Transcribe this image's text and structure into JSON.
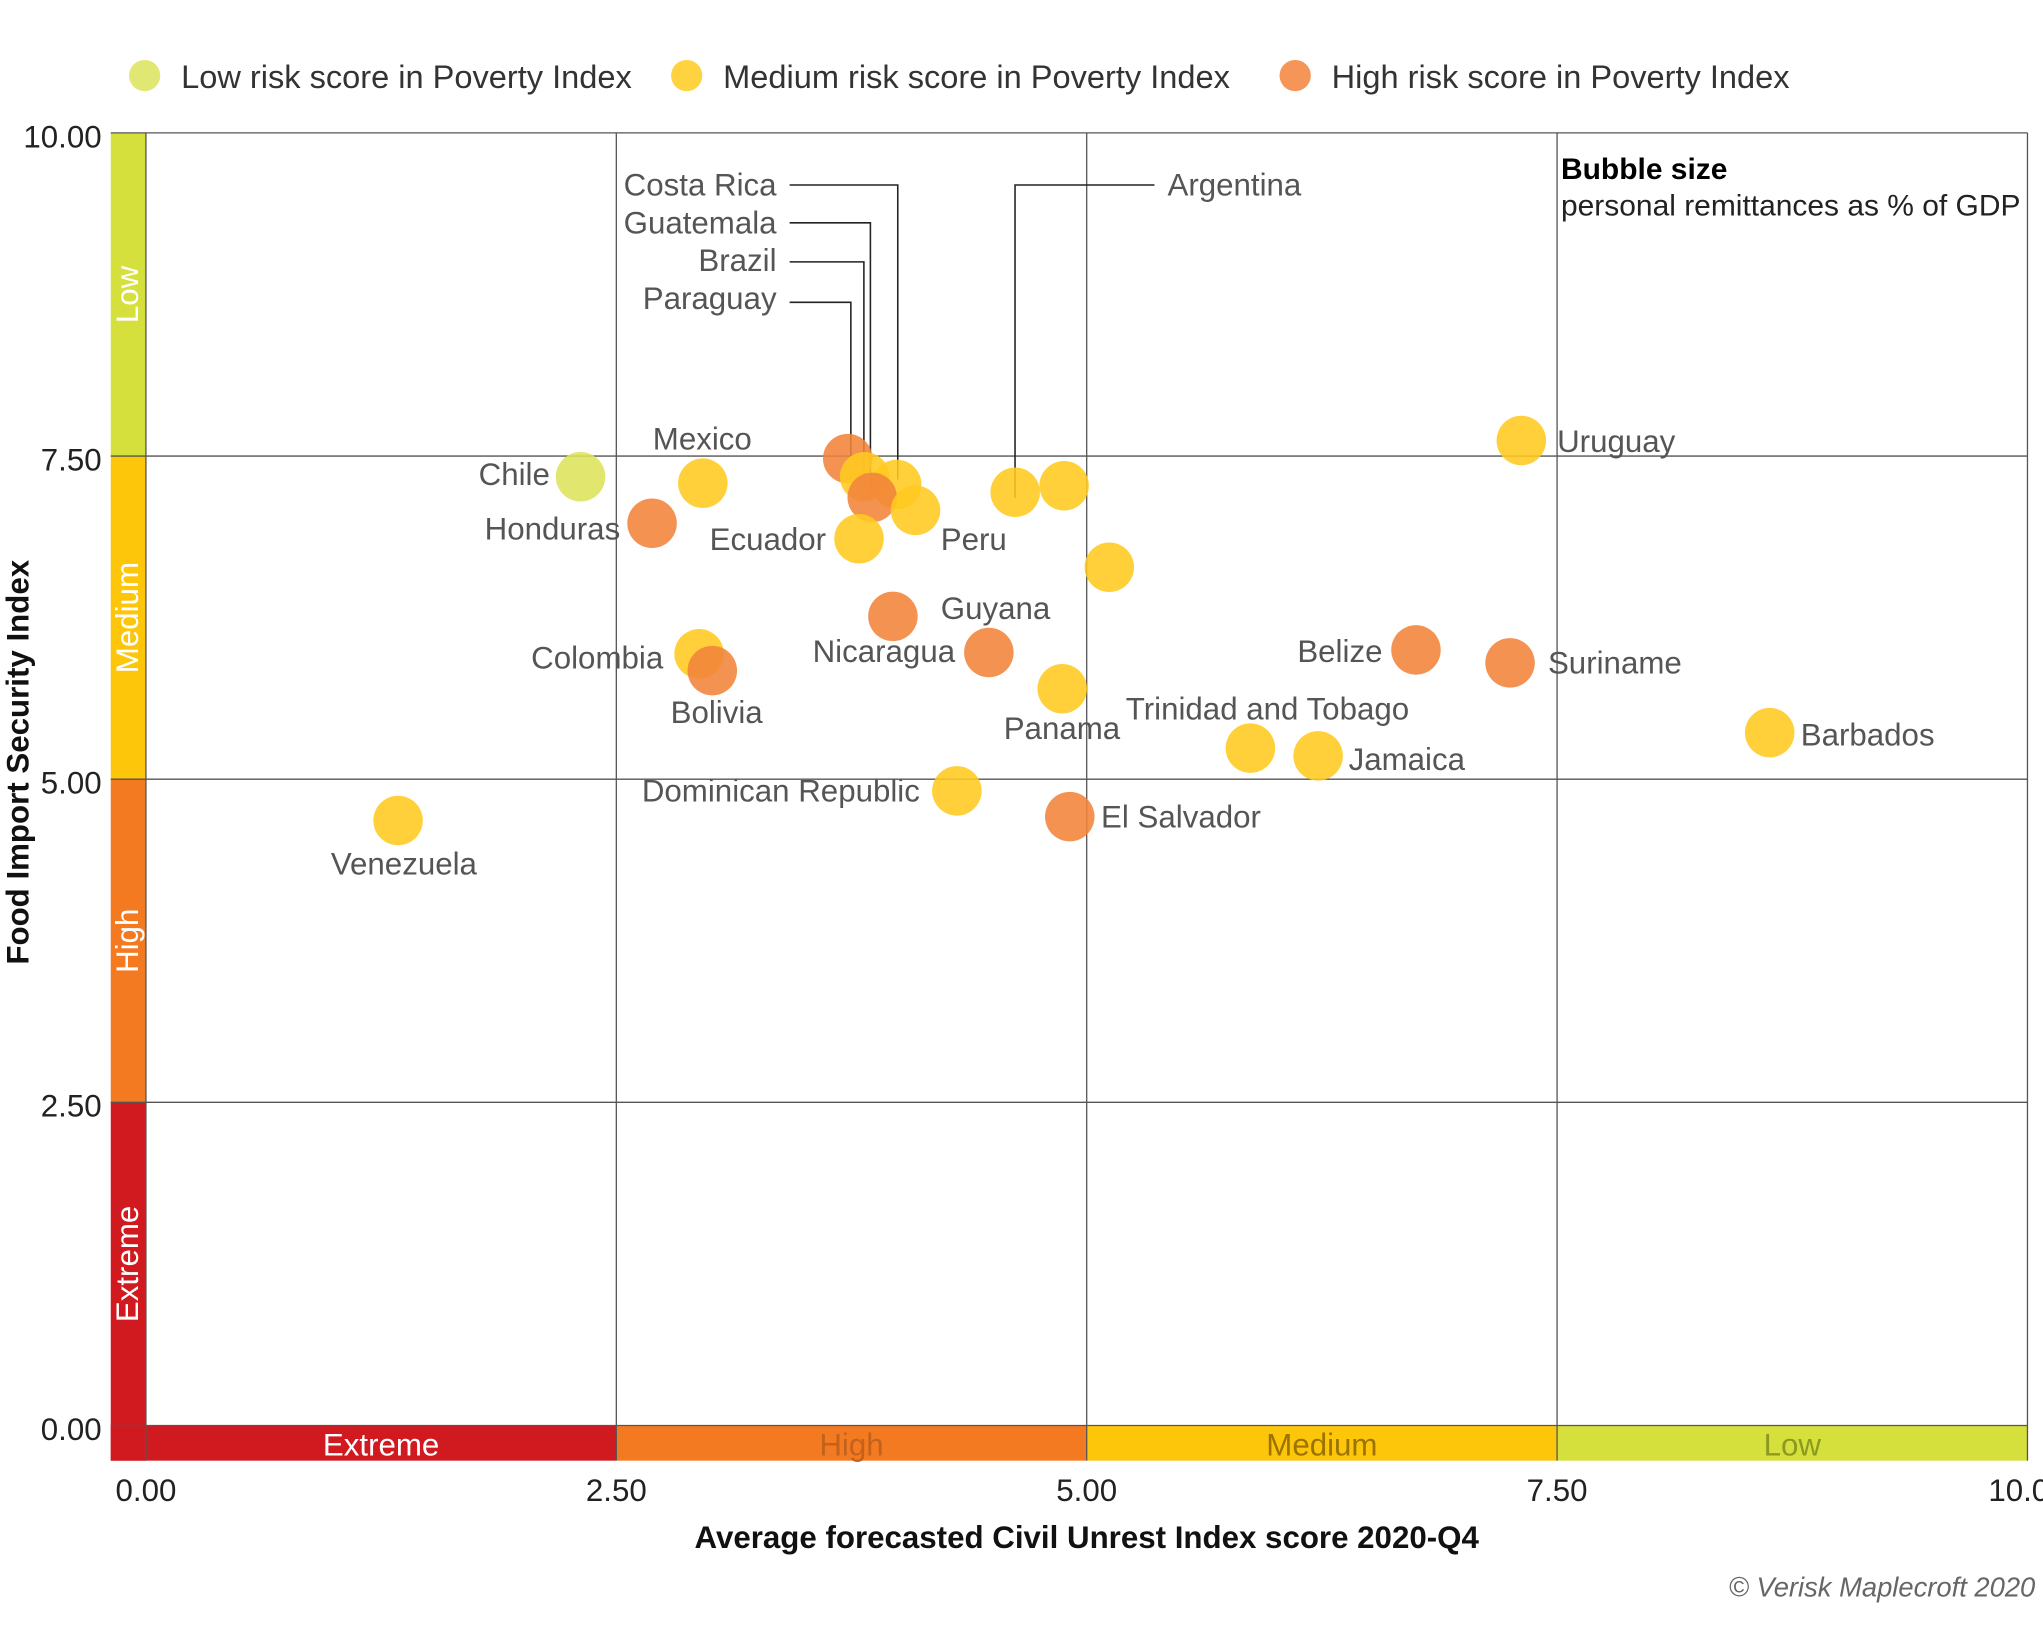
{
  "chart_data": {
    "type": "scatter",
    "xlabel": "Average forecasted Civil Unrest Index score 2020-Q4",
    "ylabel": "Food Import Security Index",
    "xlim": [
      0,
      10
    ],
    "ylim": [
      0,
      10
    ],
    "xticks": [
      "0.00",
      "2.50",
      "5.00",
      "7.50",
      "10.00"
    ],
    "yticks": [
      "0.00",
      "2.50",
      "5.00",
      "7.50",
      "10.00"
    ],
    "grid": true,
    "legend_position": "top",
    "legend": [
      {
        "key": "low",
        "label": "Low risk score in Poverty Index",
        "color": "#dce35a"
      },
      {
        "key": "medium",
        "label": "Medium risk score in Poverty Index",
        "color": "#ffca1f"
      },
      {
        "key": "high",
        "label": "High risk score in Poverty Index",
        "color": "#f3833a"
      }
    ],
    "bubble_note": {
      "title": "Bubble size",
      "text": "personal remittances as % of GDP"
    },
    "risk_bands": {
      "labels": [
        "Extreme",
        "High",
        "Medium",
        "Low"
      ],
      "ranges": [
        [
          0,
          2.5
        ],
        [
          2.5,
          5
        ],
        [
          5,
          7.5
        ],
        [
          7.5,
          10
        ]
      ],
      "colors": [
        "#d11a20",
        "#f47a22",
        "#fdc60b",
        "#d6e03d"
      ]
    },
    "points": [
      {
        "name": "Chile",
        "x": 2.31,
        "y": 7.34,
        "risk": "low"
      },
      {
        "name": "Mexico",
        "x": 2.96,
        "y": 7.29,
        "risk": "medium"
      },
      {
        "name": "Honduras",
        "x": 2.69,
        "y": 6.98,
        "risk": "high"
      },
      {
        "name": "Paraguay",
        "x": 3.73,
        "y": 7.48,
        "risk": "high"
      },
      {
        "name": "Brazil",
        "x": 3.82,
        "y": 7.34,
        "risk": "medium"
      },
      {
        "name": "Costa Rica",
        "x": 3.99,
        "y": 7.28,
        "risk": "medium"
      },
      {
        "name": "Guatemala",
        "x": 3.86,
        "y": 7.18,
        "risk": "high"
      },
      {
        "name": "Peru",
        "x": 4.09,
        "y": 7.08,
        "risk": "medium"
      },
      {
        "name": "Ecuador",
        "x": 3.79,
        "y": 6.86,
        "risk": "medium"
      },
      {
        "name": "Argentina",
        "x": 4.62,
        "y": 7.22,
        "risk": "medium"
      },
      {
        "name": "",
        "x": 4.88,
        "y": 7.27,
        "risk": "medium"
      },
      {
        "name": "",
        "x": 5.12,
        "y": 6.64,
        "risk": "medium"
      },
      {
        "name": "Guyana",
        "x": 3.97,
        "y": 6.26,
        "risk": "high"
      },
      {
        "name": "Nicaragua",
        "x": 4.48,
        "y": 5.98,
        "risk": "high"
      },
      {
        "name": "Colombia",
        "x": 2.94,
        "y": 5.97,
        "risk": "medium"
      },
      {
        "name": "Bolivia",
        "x": 3.01,
        "y": 5.84,
        "risk": "high"
      },
      {
        "name": "Panama",
        "x": 4.87,
        "y": 5.7,
        "risk": "medium"
      },
      {
        "name": "Dominican Republic",
        "x": 4.31,
        "y": 4.91,
        "risk": "medium"
      },
      {
        "name": "El Salvador",
        "x": 4.91,
        "y": 4.71,
        "risk": "high"
      },
      {
        "name": "Trinidad and Tobago",
        "x": 5.87,
        "y": 5.24,
        "risk": "medium"
      },
      {
        "name": "Jamaica",
        "x": 6.23,
        "y": 5.18,
        "risk": "medium"
      },
      {
        "name": "Belize",
        "x": 6.75,
        "y": 6.0,
        "risk": "high"
      },
      {
        "name": "Suriname",
        "x": 7.25,
        "y": 5.9,
        "risk": "high"
      },
      {
        "name": "Uruguay",
        "x": 7.31,
        "y": 7.62,
        "risk": "medium"
      },
      {
        "name": "Barbados",
        "x": 8.63,
        "y": 5.36,
        "risk": "medium"
      },
      {
        "name": "Venezuela",
        "x": 1.34,
        "y": 4.68,
        "risk": "medium"
      }
    ]
  },
  "footer": {
    "credit": "© Verisk Maplecroft 2020"
  }
}
